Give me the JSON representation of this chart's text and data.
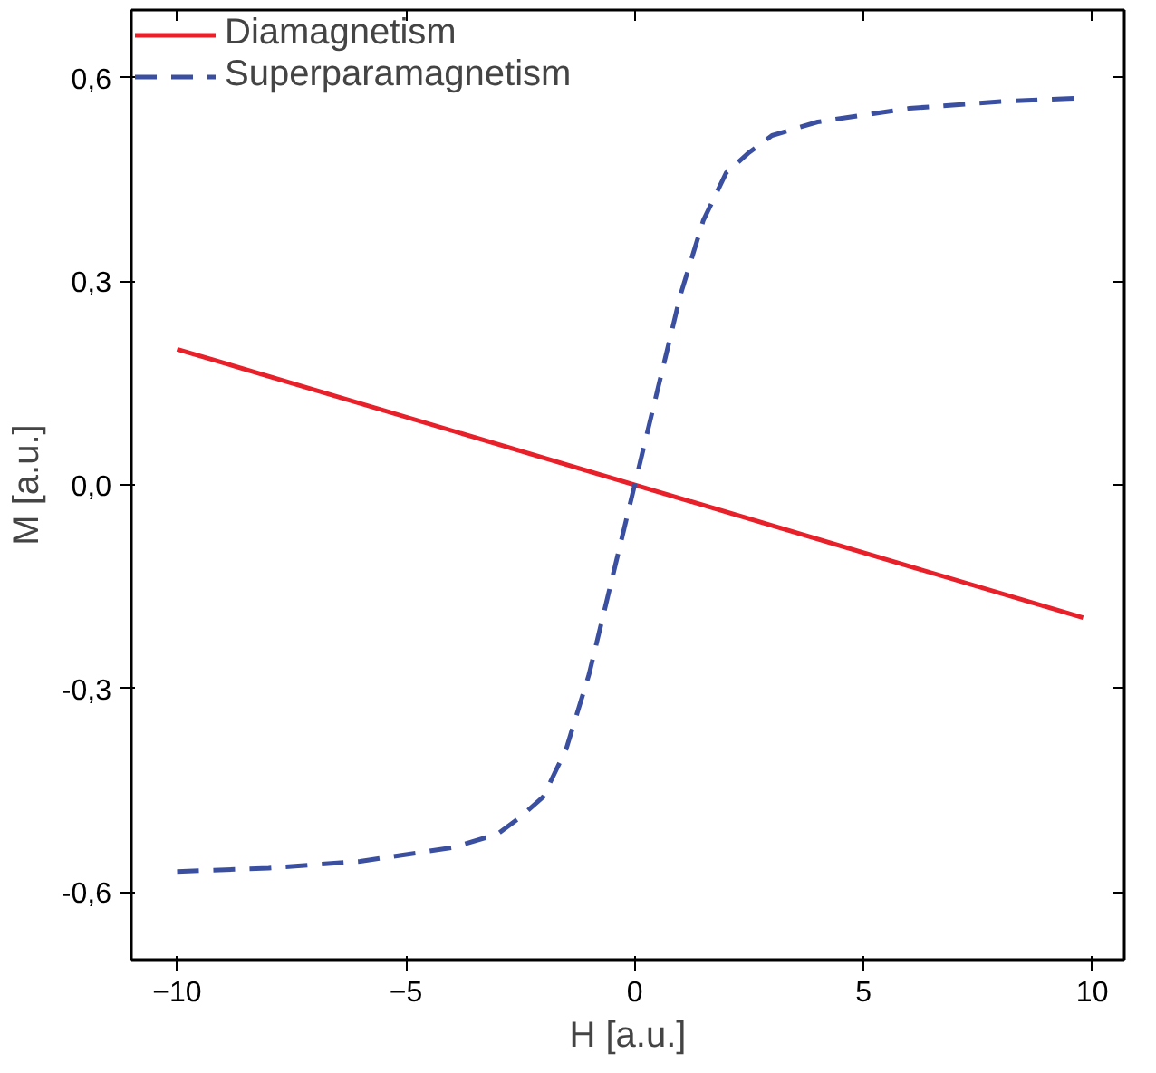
{
  "chart_data": {
    "type": "line",
    "xlabel": "H [a.u.]",
    "ylabel": "M [a.u.]",
    "xlim": [
      -11,
      10.7
    ],
    "ylim": [
      -0.7,
      0.7
    ],
    "xticks": [
      -10,
      -5,
      0,
      5,
      10
    ],
    "yticks": [
      {
        "value": -0.6,
        "label": "-0,6"
      },
      {
        "value": -0.3,
        "label": "-0,3"
      },
      {
        "value": 0,
        "label": "0,0"
      },
      {
        "value": 0.3,
        "label": "0,3"
      },
      {
        "value": 0.6,
        "label": "0,6"
      }
    ],
    "grid": false,
    "legend": "top left",
    "series": [
      {
        "name": "Diamagnetism",
        "color": "#e8202a",
        "line_style": "solid",
        "x": [
          -10,
          9.8
        ],
        "values": [
          0.2,
          -0.196
        ]
      },
      {
        "name": "Superparamagnetism",
        "color": "#3a4fa0",
        "line_style": "dashed",
        "x": [
          -10,
          -8,
          -6,
          -4,
          -3,
          -2.5,
          -2,
          -1.5,
          -1,
          -0.5,
          0,
          0.5,
          1,
          1.5,
          2,
          2.5,
          3,
          4,
          6,
          8,
          9.7
        ],
        "values": [
          -0.57,
          -0.565,
          -0.555,
          -0.535,
          -0.515,
          -0.49,
          -0.46,
          -0.39,
          -0.28,
          -0.14,
          0,
          0.14,
          0.28,
          0.39,
          0.46,
          0.49,
          0.515,
          0.535,
          0.555,
          0.565,
          0.57
        ]
      }
    ]
  }
}
